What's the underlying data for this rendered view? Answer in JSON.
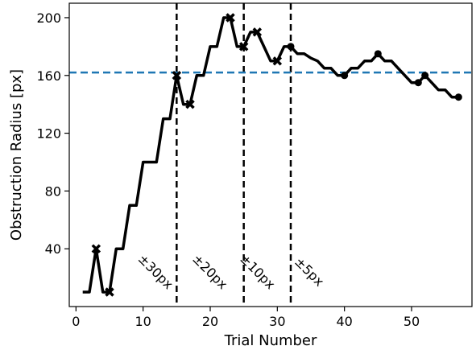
{
  "chart_data": {
    "type": "line",
    "xlabel": "Trial Number",
    "ylabel": "Obstruction Radius [px]",
    "xlim": [
      -1,
      59
    ],
    "ylim": [
      0,
      210
    ],
    "xticks": [
      0,
      10,
      20,
      30,
      40,
      50
    ],
    "yticks": [
      40,
      80,
      120,
      160,
      200
    ],
    "grid": false,
    "reference_line": {
      "y": 162,
      "color": "#1f77b4",
      "style": "dashed"
    },
    "phase_boundaries": [
      15,
      25,
      32
    ],
    "phase_labels": [
      "±30px",
      "±20px",
      "±10px",
      "±5px"
    ],
    "series": [
      {
        "color": "#000000",
        "x": [
          1,
          2,
          3,
          4,
          5,
          6,
          7,
          8,
          9,
          10,
          11,
          12,
          13,
          14,
          15,
          16,
          17,
          18,
          19,
          20,
          21,
          22,
          23,
          24,
          25,
          26,
          27,
          28,
          29,
          30,
          31,
          32,
          33,
          34,
          35,
          36,
          37,
          38,
          39,
          40,
          41,
          42,
          43,
          44,
          45,
          46,
          47,
          48,
          49,
          50,
          51,
          52,
          53,
          54,
          55,
          56,
          57
        ],
        "y": [
          10,
          10,
          40,
          10,
          10,
          40,
          40,
          70,
          70,
          100,
          100,
          100,
          130,
          130,
          160,
          140,
          140,
          160,
          160,
          180,
          180,
          200,
          200,
          180,
          180,
          190,
          190,
          180,
          170,
          170,
          180,
          180,
          175,
          175,
          172,
          170,
          165,
          165,
          160,
          160,
          165,
          165,
          170,
          170,
          175,
          170,
          170,
          165,
          160,
          155,
          155,
          160,
          155,
          150,
          150,
          145,
          145
        ],
        "x_markers": [
          3,
          5,
          15,
          17,
          23,
          25,
          27,
          30
        ],
        "circle_markers": [
          32,
          40,
          45,
          51,
          52,
          57
        ]
      }
    ]
  }
}
